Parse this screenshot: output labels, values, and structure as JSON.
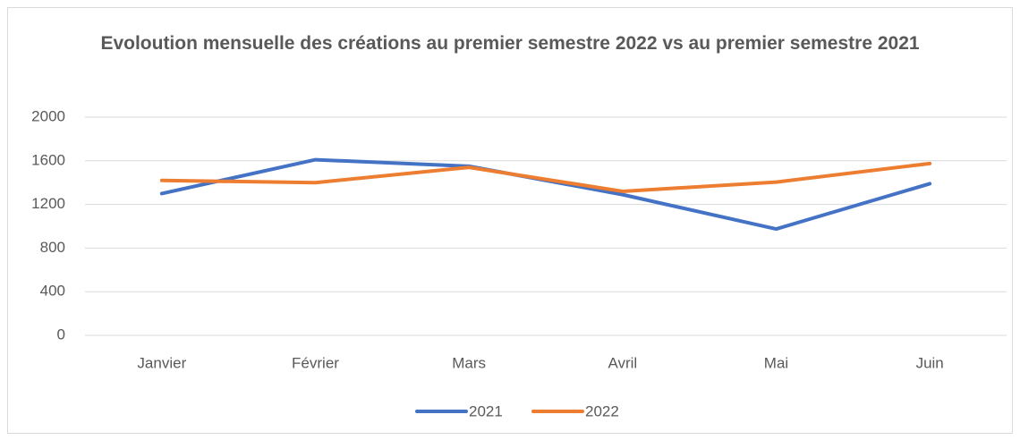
{
  "chart_data": {
    "type": "line",
    "title": "Evoloution mensuelle des créations au premier semestre 2022 vs au premier semestre 2021",
    "categories": [
      "Janvier",
      "Février",
      "Mars",
      "Avril",
      "Mai",
      "Juin"
    ],
    "series": [
      {
        "name": "2021",
        "color": "#4472c4",
        "values": [
          1300,
          1610,
          1550,
          1290,
          975,
          1390
        ]
      },
      {
        "name": "2022",
        "color": "#ed7d31",
        "values": [
          1420,
          1400,
          1540,
          1320,
          1405,
          1575
        ]
      }
    ],
    "ylim": [
      0,
      2000
    ],
    "yticks": [
      0,
      400,
      800,
      1200,
      1600,
      2000
    ],
    "grid": true,
    "legend": "bottom"
  }
}
